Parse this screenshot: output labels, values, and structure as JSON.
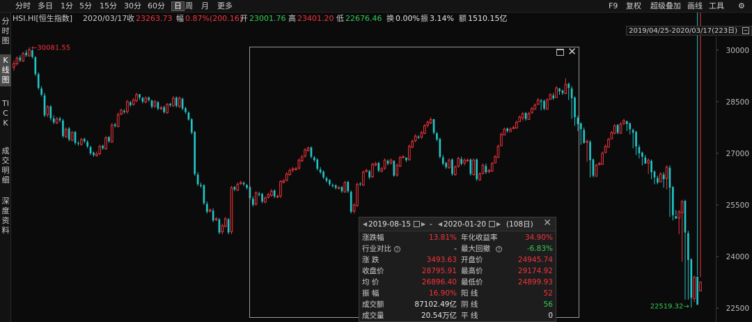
{
  "toolbar": {
    "tabs": [
      "分时",
      "多日",
      "1分",
      "5分",
      "15分",
      "30分",
      "60分",
      "日",
      "周",
      "月",
      "更多"
    ],
    "active": "日",
    "right": [
      "F9",
      "复权",
      "超级叠加",
      "画线",
      "工具"
    ]
  },
  "info": {
    "symbol": "HSI.HI[恒生指数]",
    "date": "2020/03/17",
    "close_label": "收",
    "close": "23263.73",
    "change_label": "幅",
    "change": "0.87%(200.16)",
    "open_label": "开",
    "open": "23001.76",
    "high_label": "高",
    "high": "23401.20",
    "low_label": "低",
    "low": "22676.46",
    "turnover_label": "换",
    "turnover": "0.00%",
    "amplitude_label": "振",
    "amplitude": "3.14%",
    "amount_label": "额",
    "amount": "1510.15亿"
  },
  "left_tabs": [
    "分时图",
    "K线图",
    "TICK",
    "成交明细",
    "深度资料"
  ],
  "range_label": "2019/04/25-2020/03/17(223日)",
  "panel": {
    "start": "2019-08-15",
    "dash": "-",
    "end": "2020-01-20",
    "days": "(108日)",
    "rows": [
      {
        "l1": "涨跌幅",
        "v1": "13.81%",
        "c1": "red",
        "l2": "年化收益率",
        "v2": "34.90%",
        "c2": "red"
      },
      {
        "l1": "行业对比",
        "v1": "-",
        "c1": "white",
        "l2": "最大回撤",
        "v2": "-6.83%",
        "c2": "green"
      },
      {
        "l1": "涨    跌",
        "v1": "3493.63",
        "c1": "red",
        "l2": "开盘价",
        "v2": "24945.74",
        "c2": "red"
      },
      {
        "l1": "收盘价",
        "v1": "28795.91",
        "c1": "red",
        "l2": "最高价",
        "v2": "29174.92",
        "c2": "red"
      },
      {
        "l1": "均    价",
        "v1": "26896.40",
        "c1": "red",
        "l2": "最低价",
        "v2": "24899.93",
        "c2": "red"
      },
      {
        "l1": "振    幅",
        "v1": "16.90%",
        "c1": "red",
        "l2": "阳    线",
        "v2": "52",
        "c2": "red"
      },
      {
        "l1": "成交额",
        "v1": "87102.49亿",
        "c1": "white",
        "l2": "阴    线",
        "v2": "56",
        "c2": "green"
      },
      {
        "l1": "成交量",
        "v1": "20.54万亿",
        "c1": "white",
        "l2": "平    线",
        "v2": "0",
        "c2": "white"
      }
    ]
  },
  "colors": {
    "up": "#f2343b",
    "down": "#21c6c8",
    "price_red": "#f2343b",
    "price_green": "#33cc55"
  },
  "chart_data": {
    "type": "candlestick",
    "ylim": [
      22100,
      30400
    ],
    "yticks": [
      22500,
      24000,
      25500,
      27000,
      28500,
      30000
    ],
    "ytick_labels": [
      "22500",
      "24000",
      "25500",
      "27000",
      "28500",
      "30000"
    ],
    "max_marker": {
      "label": "30081.55",
      "value": 30081.55
    },
    "min_marker": {
      "label": "22519.32",
      "value": 22519.32
    },
    "closes": [
      29600,
      29760,
      29700,
      29900,
      29850,
      30010,
      29800,
      29300,
      28900,
      28700,
      28100,
      28350,
      28020,
      27900,
      28000,
      27960,
      27500,
      27700,
      27400,
      27600,
      27300,
      27280,
      27400,
      27350,
      27200,
      27000,
      26950,
      26980,
      27200,
      27150,
      27450,
      27350,
      27820,
      27800,
      28120,
      28250,
      28200,
      28500,
      28400,
      28550,
      28700,
      28620,
      28500,
      28600,
      28550,
      28350,
      28500,
      28300,
      28320,
      28200,
      28420,
      28400,
      28600,
      28380,
      28600,
      28300,
      28200,
      27980,
      27600,
      26400,
      26100,
      26050,
      25550,
      25300,
      25350,
      25050,
      25100,
      24700,
      24900,
      25100,
      24700,
      26000,
      25950,
      26100,
      26150,
      26100,
      26000,
      25700,
      25500,
      25850,
      25800,
      25600,
      25700,
      25800,
      25900,
      25750,
      25750,
      26180,
      26200,
      26400,
      26500,
      26550,
      26550,
      26800,
      26900,
      27100,
      27150,
      26900,
      26800,
      26550,
      26450,
      26300,
      26200,
      26100,
      26050,
      26000,
      26000,
      25900,
      26150,
      25900,
      25300,
      25500,
      26100,
      26100,
      26450,
      26500,
      26300,
      26680,
      26700,
      26500,
      26550,
      26800,
      26700,
      26800,
      26350,
      26650,
      26880,
      26900,
      26800,
      27200,
      27350,
      27500,
      27450,
      27600,
      27800,
      27900,
      27980,
      27600,
      27400,
      26900,
      26700,
      26600,
      26800,
      26400,
      26600,
      26850,
      26700,
      26800,
      26800,
      26400,
      26800,
      26250,
      26400,
      26650,
      26450,
      26500,
      26700,
      26900,
      27200,
      27550,
      27700,
      27650,
      27700,
      27750,
      27900,
      28050,
      28150,
      28000,
      28150,
      28300,
      28400,
      28550,
      28500,
      28300,
      28550,
      28700,
      28600,
      28900,
      28800,
      28750,
      29000,
      28900,
      28600,
      28050,
      27850,
      27700,
      27300,
      27350,
      26800,
      26350,
      26650,
      26700,
      27000,
      27200,
      27400,
      27600,
      27800,
      27600,
      27850,
      27950,
      27850,
      27700,
      27600,
      27200,
      27000,
      26900,
      26700,
      26800,
      26450,
      26300,
      26150,
      26400,
      26250,
      26600,
      26000,
      25200,
      25100,
      25300,
      25600,
      24700,
      23900,
      22800,
      23400,
      22600,
      23263.73
    ],
    "opens": [
      29500,
      29600,
      29780,
      29680,
      29920,
      29830,
      29990,
      29790,
      29300,
      28880,
      28680,
      28120,
      28360,
      28010,
      27880,
      28010,
      27950,
      27480,
      27720,
      27380,
      27620,
      27300,
      27260,
      27420,
      27330,
      27180,
      27020,
      26930,
      26990,
      27220,
      27130,
      27470,
      27330,
      27840,
      27780,
      28140,
      28230,
      28210,
      28480,
      28420,
      28530,
      28720,
      28610,
      28490,
      28620,
      28530,
      28370,
      28480,
      28310,
      28340,
      28180,
      28440,
      28380,
      28620,
      28360,
      28580,
      28310,
      28180,
      27990,
      27620,
      26380,
      26080,
      26070,
      25530,
      25320,
      25330,
      25070,
      25080,
      24720,
      24880,
      25080,
      24720,
      26020,
      25930,
      26120,
      26140,
      26080,
      26020,
      25680,
      25520,
      25830,
      25820,
      25580,
      25720,
      25780,
      25920,
      25740,
      25760,
      26160,
      26220,
      26380,
      26520,
      26530,
      26570,
      26780,
      26920,
      27080,
      27170,
      26880,
      26820,
      26530,
      26470,
      26280,
      26220,
      26080,
      26070,
      25980,
      26020,
      25880,
      26170,
      25880,
      25320,
      25480,
      26120,
      26080,
      26470,
      26480,
      26320,
      26660,
      26720,
      26480,
      26570,
      26780,
      26720,
      26780,
      26370,
      26630,
      26900,
      26880,
      26820,
      27180,
      27370,
      27480,
      27470,
      27580,
      27820,
      27880,
      27990,
      27580,
      27420,
      26880,
      26720,
      26580,
      26820,
      26380,
      26620,
      26830,
      26720,
      26780,
      26820,
      26380,
      26820,
      26230,
      26420,
      26630,
      26470,
      26480,
      26720,
      26880,
      27220,
      27530,
      27720,
      27630,
      27720,
      27730,
      27920,
      28030,
      28170,
      27980,
      28170,
      28280,
      28420,
      28530,
      28520,
      28280,
      28570,
      28680,
      28620,
      28880,
      28820,
      28730,
      29020,
      28880,
      28620,
      28030,
      27870,
      27680,
      27320,
      27330,
      26820,
      26330,
      26670,
      26680,
      27020,
      27180,
      27420,
      27580,
      27820,
      27580,
      27870,
      27930,
      27870,
      27680,
      27620,
      27180,
      27020,
      26880,
      26720,
      26780,
      26470,
      26280,
      26170,
      26380,
      26270,
      26580,
      26020,
      25180,
      25120,
      25280,
      25620,
      24680,
      23920,
      22780,
      23420,
      23001.76
    ],
    "highs": [
      29700,
      29820,
      29850,
      29950,
      30000,
      30081.55,
      30020,
      29820,
      29350,
      28950,
      28750,
      28400,
      28400,
      28100,
      28050,
      28060,
      28000,
      27750,
      27760,
      27650,
      27650,
      27350,
      27450,
      27450,
      27380,
      27220,
      27050,
      27050,
      27250,
      27250,
      27500,
      27500,
      27880,
      27880,
      28180,
      28300,
      28280,
      28550,
      28520,
      28600,
      28760,
      28700,
      28640,
      28660,
      28650,
      28560,
      28550,
      28520,
      28380,
      28380,
      28460,
      28460,
      28660,
      28650,
      28650,
      28620,
      28350,
      28220,
      28020,
      27650,
      26450,
      26150,
      26100,
      25600,
      25400,
      25400,
      25150,
      25120,
      24950,
      25150,
      25120,
      26050,
      26050,
      26150,
      26200,
      26180,
      26100,
      26050,
      25750,
      25900,
      25880,
      25850,
      25750,
      25850,
      25960,
      25950,
      25800,
      26220,
      26250,
      26450,
      26560,
      26600,
      26600,
      26850,
      26950,
      27150,
      27200,
      27200,
      26920,
      26850,
      26600,
      26500,
      26320,
      26250,
      26120,
      26100,
      26050,
      26050,
      26200,
      26200,
      25920,
      25550,
      26150,
      26160,
      26500,
      26550,
      26520,
      26720,
      26750,
      26750,
      26600,
      26850,
      26820,
      26850,
      26800,
      26700,
      26920,
      26950,
      26860,
      27250,
      27400,
      27550,
      27520,
      27650,
      27850,
      27950,
      28050,
      28000,
      27620,
      27450,
      26950,
      26750,
      26850,
      26850,
      26650,
      26900,
      26900,
      26850,
      26850,
      26850,
      26850,
      26850,
      26450,
      26700,
      26700,
      26550,
      26750,
      26950,
      27250,
      27600,
      27750,
      27750,
      27750,
      27800,
      27950,
      28100,
      28200,
      28200,
      28200,
      28350,
      28450,
      28600,
      28580,
      28560,
      28600,
      28750,
      28750,
      28950,
      28900,
      28850,
      29174.92,
      29050,
      28950,
      28650,
      28100,
      27900,
      27750,
      27400,
      27380,
      26850,
      26700,
      26750,
      27050,
      27250,
      27450,
      27650,
      27850,
      27850,
      27900,
      28000,
      27950,
      27900,
      27720,
      27650,
      27250,
      27050,
      26950,
      26850,
      26820,
      26500,
      26350,
      26450,
      26450,
      26650,
      26650,
      26050,
      25350,
      25350,
      25650,
      25650,
      24750,
      23950,
      23450,
      23450,
      23401.2
    ],
    "lows": [
      29400,
      29550,
      29650,
      29650,
      29800,
      29800,
      29750,
      29250,
      28850,
      28650,
      28050,
      28050,
      27950,
      27850,
      27850,
      27900,
      27450,
      27450,
      27350,
      27350,
      27250,
      27220,
      27220,
      27300,
      27150,
      26950,
      26900,
      26900,
      26950,
      27100,
      27100,
      27300,
      27300,
      27750,
      27750,
      28100,
      28150,
      28150,
      28350,
      28380,
      28480,
      28550,
      28450,
      28450,
      28500,
      28300,
      28320,
      28250,
      28250,
      28150,
      28150,
      28350,
      28350,
      28330,
      28320,
      28250,
      28150,
      27950,
      27550,
      26350,
      26050,
      26000,
      25500,
      25250,
      25280,
      25000,
      25030,
      24650,
      24650,
      24850,
      24650,
      24650,
      25900,
      25900,
      26080,
      26050,
      25950,
      25650,
      25450,
      25480,
      25750,
      25550,
      25550,
      25680,
      25740,
      25700,
      25700,
      25700,
      26120,
      26180,
      26350,
      26450,
      26500,
      26520,
      26750,
      26870,
      27050,
      26850,
      26750,
      26500,
      26400,
      26250,
      26150,
      26050,
      26000,
      25950,
      25950,
      25850,
      25850,
      25850,
      25250,
      25250,
      25450,
      26050,
      26050,
      26450,
      26250,
      26280,
      26620,
      26450,
      26450,
      26520,
      26650,
      26670,
      26320,
      26320,
      26600,
      26850,
      26750,
      26780,
      27150,
      27320,
      27420,
      27420,
      27550,
      27750,
      27850,
      27550,
      27350,
      26850,
      26650,
      26550,
      26550,
      26350,
      26350,
      26580,
      26650,
      26650,
      26750,
      26350,
      26350,
      26200,
      26200,
      26380,
      26400,
      26420,
      26480,
      26850,
      27150,
      27500,
      27600,
      27600,
      27650,
      27700,
      27850,
      27950,
      27950,
      27950,
      28100,
      28250,
      28350,
      28450,
      28250,
      28250,
      28500,
      28550,
      28550,
      28780,
      28700,
      28700,
      28850,
      28550,
      28000,
      27800,
      27650,
      27250,
      27280,
      26750,
      26300,
      26300,
      26600,
      26650,
      26950,
      27150,
      27350,
      27550,
      27550,
      27550,
      27800,
      27820,
      27650,
      27550,
      27150,
      26950,
      26850,
      26650,
      26700,
      26400,
      26250,
      26100,
      26100,
      26200,
      26000,
      25950,
      25150,
      25050,
      25200,
      24650,
      23850,
      22750,
      22750,
      22519.32,
      22676.46
    ]
  }
}
